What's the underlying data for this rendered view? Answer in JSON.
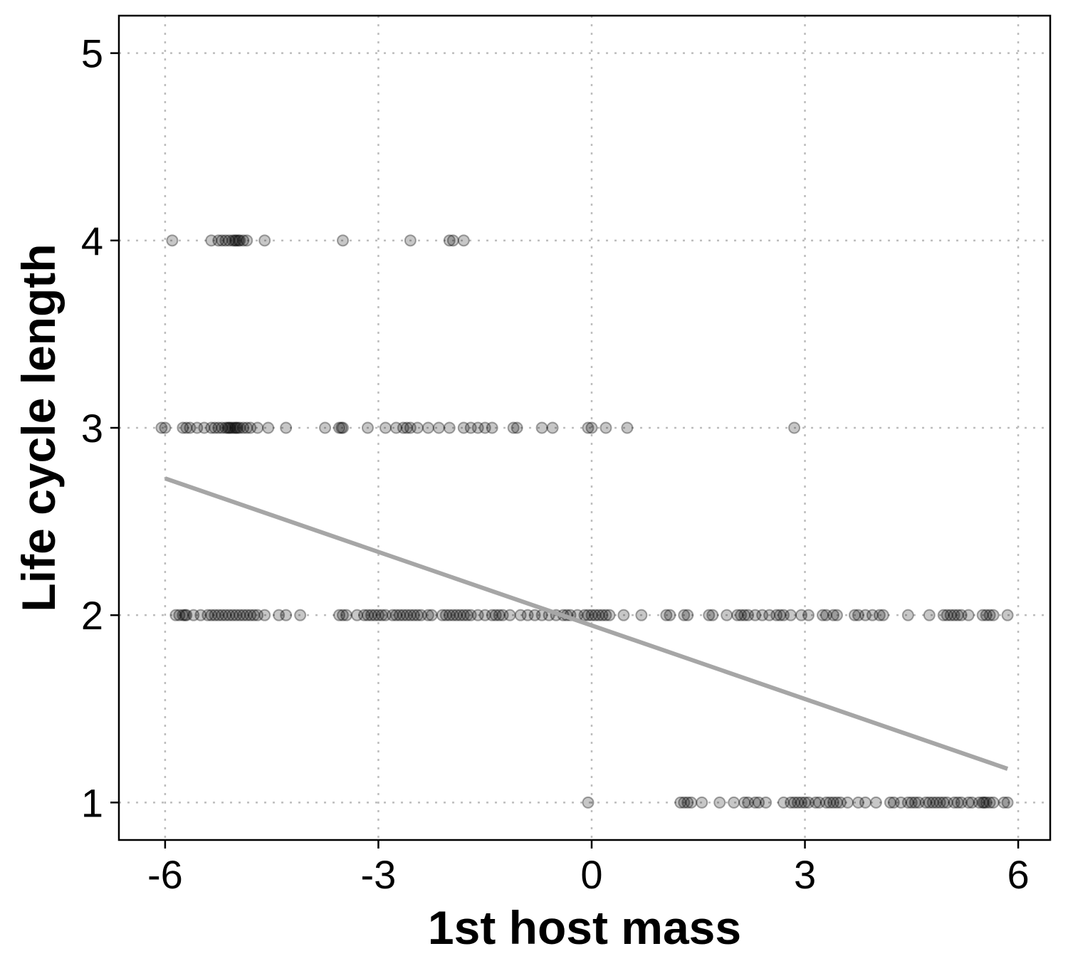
{
  "chart_data": {
    "type": "scatter",
    "title": "",
    "xlabel": "1st host mass",
    "ylabel": "Life cycle length",
    "xlim": [
      -6.65,
      6.45
    ],
    "ylim": [
      0.8,
      5.2
    ],
    "x_ticks": [
      -6,
      -3,
      0,
      3,
      6
    ],
    "y_ticks": [
      1,
      2,
      3,
      4,
      5
    ],
    "x_tick_labels": [
      "-6",
      "-3",
      "0",
      "3",
      "6"
    ],
    "y_tick_labels": [
      "1",
      "2",
      "3",
      "4",
      "5"
    ],
    "grid": true,
    "legend": "none",
    "point_color": "#000000",
    "point_opacity": 0.22,
    "fit_line_color": "#a6a6a6",
    "series": [
      {
        "points_y4": [
          -5.9,
          -5.35,
          -5.25,
          -5.2,
          -5.15,
          -5.1,
          -5.05,
          -5.02,
          -5.0,
          -4.97,
          -4.95,
          -4.9,
          -4.85,
          -4.6,
          -3.5,
          -2.55,
          -2.0,
          -1.95,
          -1.8
        ],
        "points_y3": [
          -6.05,
          -6.0,
          -5.75,
          -5.7,
          -5.65,
          -5.55,
          -5.45,
          -5.35,
          -5.3,
          -5.25,
          -5.2,
          -5.15,
          -5.12,
          -5.1,
          -5.08,
          -5.05,
          -5.02,
          -5.0,
          -4.98,
          -4.95,
          -4.9,
          -4.85,
          -4.8,
          -4.7,
          -4.55,
          -4.3,
          -3.75,
          -3.55,
          -3.52,
          -3.5,
          -3.15,
          -2.9,
          -2.75,
          -2.65,
          -2.6,
          -2.55,
          -2.45,
          -2.3,
          -2.15,
          -2.0,
          -1.8,
          -1.7,
          -1.6,
          -1.5,
          -1.4,
          -1.1,
          -1.05,
          -0.7,
          -0.55,
          -0.05,
          0.0,
          0.2,
          0.5,
          2.85
        ],
        "points_y2": [
          -5.85,
          -5.8,
          -5.75,
          -5.72,
          -5.7,
          -5.6,
          -5.5,
          -5.4,
          -5.35,
          -5.3,
          -5.25,
          -5.2,
          -5.15,
          -5.1,
          -5.05,
          -5.0,
          -4.95,
          -4.9,
          -4.85,
          -4.8,
          -4.75,
          -4.7,
          -4.6,
          -4.4,
          -4.3,
          -4.1,
          -3.55,
          -3.5,
          -3.45,
          -3.3,
          -3.2,
          -3.15,
          -3.1,
          -3.05,
          -3.0,
          -2.95,
          -2.9,
          -2.8,
          -2.75,
          -2.7,
          -2.65,
          -2.6,
          -2.55,
          -2.5,
          -2.45,
          -2.4,
          -2.3,
          -2.25,
          -2.1,
          -2.05,
          -2.0,
          -1.95,
          -1.9,
          -1.85,
          -1.8,
          -1.75,
          -1.7,
          -1.6,
          -1.5,
          -1.4,
          -1.35,
          -1.3,
          -1.25,
          -1.15,
          -1.0,
          -0.9,
          -0.8,
          -0.7,
          -0.6,
          -0.5,
          -0.4,
          -0.35,
          -0.3,
          -0.2,
          -0.1,
          -0.05,
          0.0,
          0.05,
          0.1,
          0.15,
          0.2,
          0.25,
          0.45,
          0.7,
          1.05,
          1.1,
          1.3,
          1.35,
          1.65,
          1.7,
          1.9,
          2.05,
          2.1,
          2.15,
          2.2,
          2.3,
          2.4,
          2.5,
          2.6,
          2.65,
          2.7,
          2.8,
          2.95,
          3.05,
          3.25,
          3.3,
          3.4,
          3.45,
          3.7,
          3.75,
          3.85,
          3.95,
          4.05,
          4.1,
          4.45,
          4.75,
          4.95,
          5.0,
          5.05,
          5.1,
          5.15,
          5.2,
          5.3,
          5.5,
          5.55,
          5.6,
          5.65,
          5.85
        ],
        "points_y1": [
          -0.05,
          1.25,
          1.3,
          1.35,
          1.4,
          1.55,
          1.8,
          2.0,
          2.15,
          2.2,
          2.3,
          2.35,
          2.45,
          2.7,
          2.8,
          2.85,
          2.9,
          2.95,
          3.0,
          3.05,
          3.15,
          3.2,
          3.3,
          3.35,
          3.4,
          3.45,
          3.5,
          3.6,
          3.75,
          3.85,
          4.0,
          4.2,
          4.25,
          4.35,
          4.45,
          4.5,
          4.55,
          4.6,
          4.7,
          4.75,
          4.8,
          4.85,
          4.9,
          4.95,
          5.0,
          5.1,
          5.15,
          5.2,
          5.3,
          5.35,
          5.45,
          5.5,
          5.52,
          5.55,
          5.6,
          5.65,
          5.8,
          5.85
        ]
      }
    ],
    "fit_line": {
      "x": [
        -6.0,
        5.85
      ],
      "y": [
        2.73,
        1.18
      ]
    }
  }
}
